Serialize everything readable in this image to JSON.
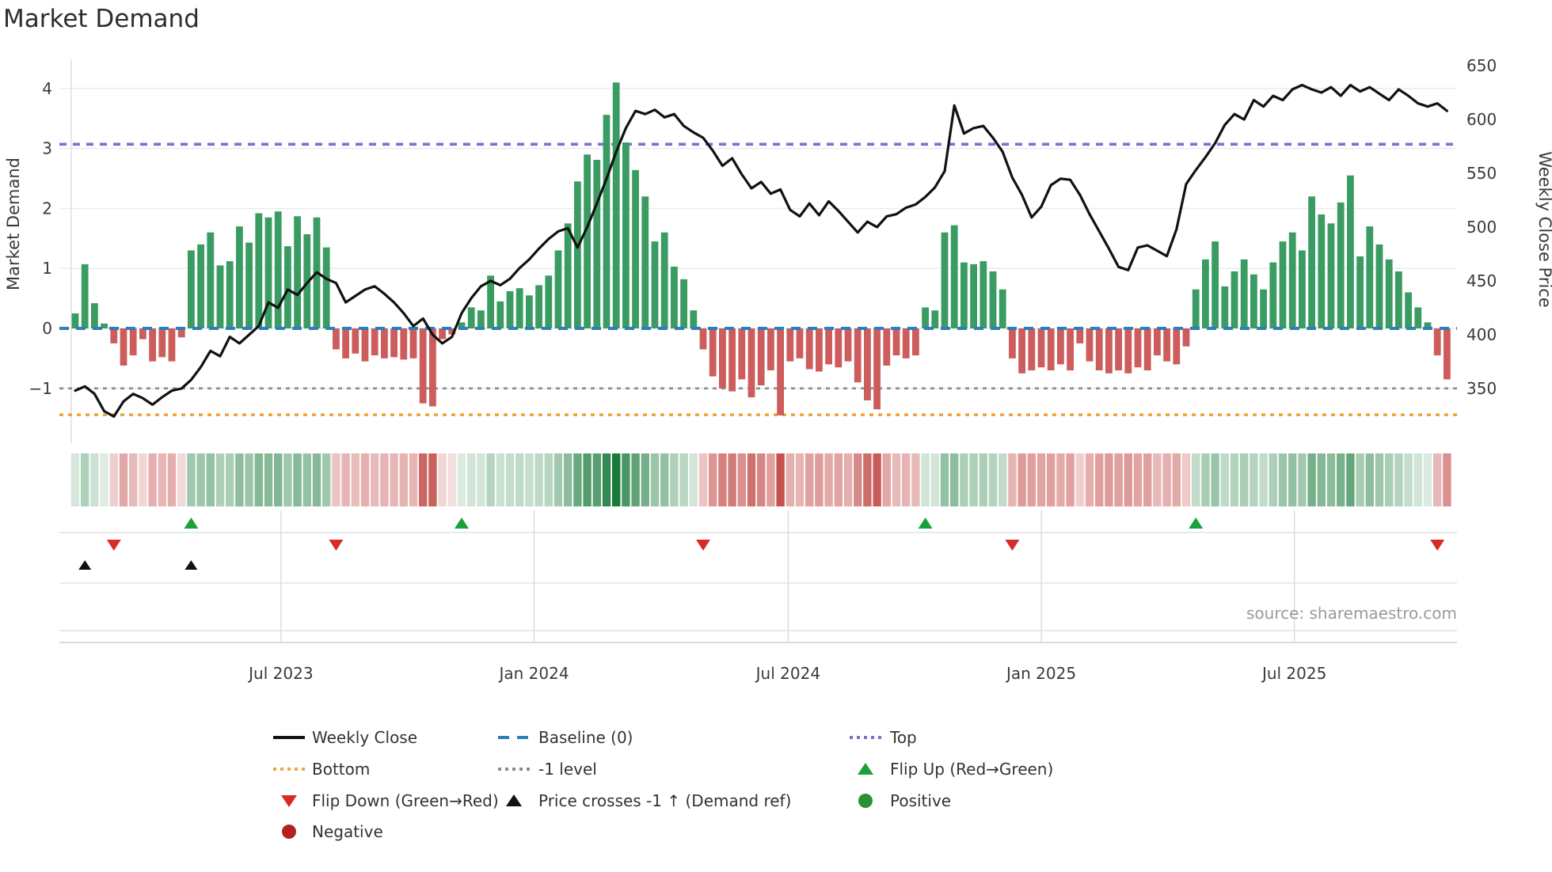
{
  "title": "Market Demand",
  "y_left": {
    "label": "Market Demand",
    "ticks": [
      "4",
      "3",
      "2",
      "1",
      "0",
      "−1"
    ],
    "tick_values": [
      4,
      3,
      2,
      1,
      0,
      -1
    ]
  },
  "y_right": {
    "label": "Weekly Close Price",
    "ticks": [
      "650",
      "600",
      "550",
      "500",
      "450",
      "400",
      "350"
    ],
    "tick_values": [
      650,
      600,
      550,
      500,
      450,
      400,
      350
    ]
  },
  "source": "source: sharemaestro.com",
  "colors": {
    "bar_positive": "#3a9c62",
    "bar_negative": "#cd5c5c",
    "price_line": "#111111",
    "baseline": "#2c7fb8",
    "top_line": "#7b6fd6",
    "bottom_line": "#f0a43c",
    "minus_one_line": "#8c8c8c",
    "flip_up": "#1ba13a",
    "flip_down": "#d62b2b",
    "price_cross": "#111111",
    "positive_dot": "#2a9235",
    "negative_dot": "#b22222",
    "heat_green_max": "#1a7a3a",
    "heat_red_max": "#c4524f"
  },
  "chart_data": {
    "type": "bar+line",
    "title": "Market Demand",
    "xlabel": "",
    "ylabel_left": "Market Demand",
    "ylabel_right": "Weekly Close Price",
    "ylim_left": [
      -1.9,
      4.5
    ],
    "ylim_right": [
      300,
      660
    ],
    "grid": "horizontal",
    "baseline": 0,
    "top_level": 3.07,
    "bottom_level": -1.44,
    "minus_one_level": -1,
    "x_ticks": [
      {
        "label": "Jul 2023",
        "week": 21.3
      },
      {
        "label": "Jan 2024",
        "week": 47.5
      },
      {
        "label": "Jul 2024",
        "week": 73.8
      },
      {
        "label": "Jan 2025",
        "week": 100.0
      },
      {
        "label": "Jul 2025",
        "week": 126.2
      }
    ],
    "series": [
      {
        "name": "Market Demand (weekly bars)",
        "type": "bar",
        "values": [
          0.25,
          1.07,
          0.42,
          0.08,
          -0.25,
          -0.62,
          -0.45,
          -0.18,
          -0.55,
          -0.48,
          -0.55,
          -0.15,
          1.3,
          1.4,
          1.6,
          1.05,
          1.12,
          1.7,
          1.43,
          1.92,
          1.85,
          1.95,
          1.37,
          1.87,
          1.57,
          1.85,
          1.35,
          -0.35,
          -0.5,
          -0.42,
          -0.55,
          -0.45,
          -0.5,
          -0.48,
          -0.52,
          -0.5,
          -1.25,
          -1.3,
          -0.18,
          -0.1,
          0.1,
          0.35,
          0.3,
          0.88,
          0.45,
          0.62,
          0.67,
          0.55,
          0.72,
          0.88,
          1.3,
          1.75,
          2.45,
          2.9,
          2.81,
          3.56,
          4.1,
          3.1,
          2.64,
          2.2,
          1.45,
          1.6,
          1.03,
          0.82,
          0.3,
          -0.35,
          -0.8,
          -1.0,
          -1.05,
          -0.85,
          -1.15,
          -0.95,
          -0.7,
          -1.45,
          -0.55,
          -0.5,
          -0.68,
          -0.72,
          -0.6,
          -0.65,
          -0.55,
          -0.9,
          -1.2,
          -1.35,
          -0.62,
          -0.45,
          -0.5,
          -0.45,
          0.35,
          0.3,
          1.6,
          1.72,
          1.1,
          1.07,
          1.12,
          0.95,
          0.65,
          -0.5,
          -0.75,
          -0.7,
          -0.65,
          -0.7,
          -0.6,
          -0.7,
          -0.25,
          -0.55,
          -0.7,
          -0.75,
          -0.7,
          -0.75,
          -0.65,
          -0.7,
          -0.45,
          -0.55,
          -0.6,
          -0.3,
          0.65,
          1.15,
          1.45,
          0.7,
          0.95,
          1.15,
          0.9,
          0.65,
          1.1,
          1.45,
          1.6,
          1.3,
          2.2,
          1.9,
          1.75,
          2.1,
          2.55,
          1.2,
          1.7,
          1.4,
          1.15,
          0.95,
          0.6,
          0.35,
          0.1,
          -0.45,
          -0.85
        ]
      },
      {
        "name": "Weekly Close",
        "type": "line",
        "values": [
          348,
          352,
          345,
          329,
          324,
          338,
          345,
          341,
          335,
          342,
          348,
          350,
          358,
          370,
          385,
          380,
          398,
          392,
          400,
          408,
          430,
          425,
          442,
          437,
          448,
          458,
          452,
          448,
          430,
          436,
          442,
          445,
          438,
          430,
          420,
          408,
          415,
          400,
          392,
          398,
          420,
          434,
          445,
          450,
          446,
          452,
          462,
          470,
          480,
          489,
          496,
          499,
          481,
          500,
          522,
          545,
          570,
          592,
          608,
          605,
          609,
          602,
          605,
          594,
          588,
          583,
          571,
          557,
          564,
          549,
          536,
          542,
          531,
          535,
          516,
          510,
          522,
          511,
          524,
          515,
          505,
          495,
          505,
          500,
          510,
          512,
          518,
          521,
          528,
          537,
          552,
          613,
          587,
          592,
          594,
          583,
          570,
          546,
          530,
          509,
          519,
          539,
          545,
          544,
          530,
          512,
          496,
          480,
          463,
          460,
          481,
          483,
          478,
          473,
          498,
          540,
          553,
          565,
          578,
          595,
          605,
          600,
          618,
          612,
          622,
          618,
          628,
          632,
          628,
          625,
          630,
          622,
          632,
          626,
          630,
          624,
          618,
          628,
          622,
          615,
          612,
          615,
          608
        ]
      }
    ],
    "markers": {
      "flip_up_weeks": [
        12,
        40,
        88,
        116
      ],
      "flip_down_weeks": [
        4,
        27,
        65,
        97,
        141
      ],
      "price_cross_weeks": [
        1,
        12
      ]
    },
    "heatmap": "same sign/intensity as demand bars"
  },
  "legend": {
    "rows": [
      [
        {
          "swatch": "line",
          "color": "#111111",
          "label": "Weekly Close"
        },
        {
          "swatch": "dashes",
          "color": "#2c7fb8",
          "label": "Baseline (0)"
        },
        {
          "swatch": "dots",
          "color": "#7b6fd6",
          "label": "Top"
        }
      ],
      [
        {
          "swatch": "dots",
          "color": "#f0a43c",
          "label": "Bottom"
        },
        {
          "swatch": "dots",
          "color": "#8c8c8c",
          "label": "-1 level"
        },
        {
          "swatch": "tri-up",
          "color": "#1ba13a",
          "label": "Flip Up (Red→Green)"
        }
      ],
      [
        {
          "swatch": "tri-down",
          "color": "#d62b2b",
          "label": "Flip Down (Green→Red)"
        },
        {
          "swatch": "tri-up",
          "color": "#111111",
          "label": "Price crosses -1 ↑ (Demand ref)"
        },
        {
          "swatch": "circle",
          "color": "#2a9235",
          "label": "Positive"
        }
      ],
      [
        {
          "swatch": "circle",
          "color": "#b22222",
          "label": "Negative"
        }
      ]
    ]
  }
}
